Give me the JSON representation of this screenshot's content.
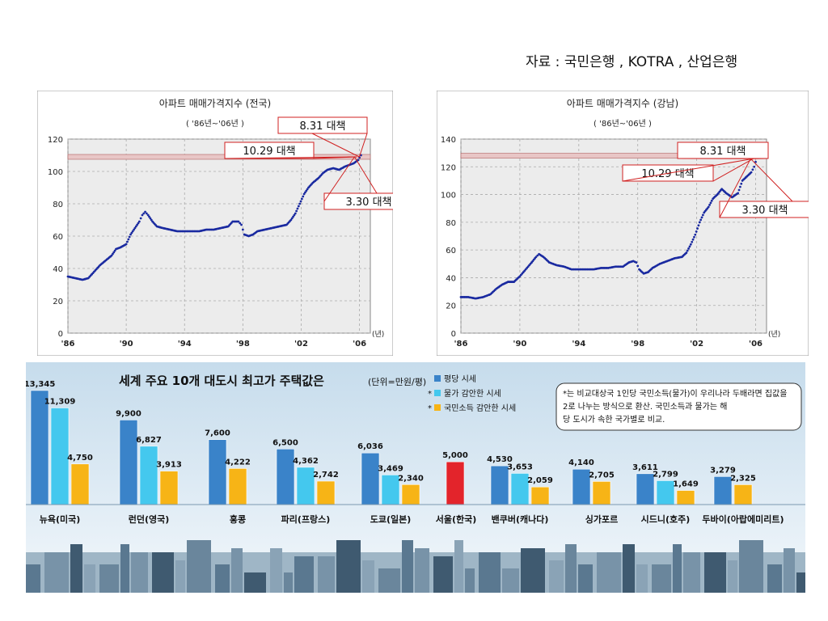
{
  "source": "자료 : 국민은행 , KOTRA , 산업은행",
  "chart_data": [
    {
      "type": "line",
      "title": "아파트 매매가격지수 (전국)",
      "subtitle": "( '86년~'06년 )",
      "x_ticks": [
        "'86",
        "'90",
        "'94",
        "'98",
        "'02",
        "'06"
      ],
      "x_unit": "(년)",
      "ylim": [
        0,
        120
      ],
      "y_ticks": [
        0,
        20,
        40,
        60,
        80,
        100,
        120
      ],
      "reference_line": 109,
      "grid": true,
      "x": [
        1986.0,
        1986.5,
        1987.0,
        1987.4,
        1987.8,
        1988.2,
        1988.6,
        1989.0,
        1989.3,
        1989.6,
        1990.0,
        1990.3,
        1990.6,
        1990.9,
        1991.1,
        1991.3,
        1991.5,
        1991.8,
        1992.1,
        1992.5,
        1993.0,
        1993.5,
        1994.0,
        1994.5,
        1995.0,
        1995.5,
        1996.0,
        1996.5,
        1997.0,
        1997.3,
        1997.7,
        1997.9,
        1998.1,
        1998.4,
        1998.7,
        1999.0,
        1999.5,
        2000.0,
        2000.5,
        2001.0,
        2001.3,
        2001.6,
        2001.9,
        2002.2,
        2002.5,
        2002.8,
        2003.2,
        2003.5,
        2003.8,
        2004.2,
        2004.6,
        2005.0,
        2005.3,
        2005.6,
        2005.9,
        2006.1
      ],
      "y": [
        35,
        34,
        33,
        34,
        38,
        42,
        45,
        48,
        52,
        53,
        55,
        61,
        65,
        69,
        73,
        75,
        73,
        69,
        66,
        65,
        64,
        63,
        63,
        63,
        63,
        64,
        64,
        65,
        66,
        69,
        69,
        67,
        61,
        60,
        61,
        63,
        64,
        65,
        66,
        67,
        70,
        74,
        80,
        86,
        90,
        93,
        96,
        99,
        101,
        102,
        101,
        103,
        104,
        105,
        107,
        110
      ],
      "annotations": [
        "8.31 대책",
        "10.29 대책",
        "3.30 대책"
      ]
    },
    {
      "type": "line",
      "title": "아파트 매매가격지수 (강남)",
      "subtitle": "( '86년~'06년 )",
      "x_ticks": [
        "'86",
        "'90",
        "'94",
        "'98",
        "'02",
        "'06"
      ],
      "x_unit": "(년)",
      "ylim": [
        0,
        140
      ],
      "y_ticks": [
        0,
        20,
        40,
        60,
        80,
        100,
        120,
        140
      ],
      "reference_line": 128,
      "grid": true,
      "x": [
        1986.0,
        1986.5,
        1987.0,
        1987.5,
        1988.0,
        1988.4,
        1988.8,
        1989.2,
        1989.6,
        1990.0,
        1990.4,
        1990.8,
        1991.1,
        1991.3,
        1991.6,
        1992.0,
        1992.5,
        1993.0,
        1993.5,
        1994.0,
        1994.5,
        1995.0,
        1995.5,
        1996.0,
        1996.5,
        1997.0,
        1997.4,
        1997.7,
        1997.9,
        1998.1,
        1998.4,
        1998.7,
        1999.0,
        1999.5,
        2000.0,
        2000.5,
        2001.0,
        2001.3,
        2001.6,
        2001.9,
        2002.2,
        2002.5,
        2002.8,
        2003.1,
        2003.4,
        2003.7,
        2004.0,
        2004.4,
        2004.8,
        2005.1,
        2005.4,
        2005.7,
        2005.9,
        2006.1
      ],
      "y": [
        26,
        26,
        25,
        26,
        28,
        32,
        35,
        37,
        37,
        41,
        46,
        51,
        55,
        57,
        55,
        51,
        49,
        48,
        46,
        46,
        46,
        46,
        47,
        47,
        48,
        48,
        51,
        52,
        51,
        46,
        43,
        44,
        47,
        50,
        52,
        54,
        55,
        58,
        64,
        71,
        80,
        87,
        91,
        97,
        100,
        104,
        101,
        98,
        101,
        110,
        113,
        116,
        120,
        127
      ],
      "annotations": [
        "8.31 대책",
        "10.29 대책",
        "3.30 대책"
      ]
    },
    {
      "type": "bar",
      "title": "세계 주요 10개 대도시 최고가 주택값은",
      "unit": "(단위=만원/평)",
      "legend_position": "top-center",
      "note": "*는 비교대상국 1인당 국민소득(물가)이 우리나라 두배라면 집값을 2로 나누는 방식으로 환산. 국민소득과 물가는 해당 도시가 속한 국가별로 비교.",
      "categories": [
        "뉴욕(미국)",
        "런던(영국)",
        "홍콩",
        "파리(프랑스)",
        "도쿄(일본)",
        "서울(한국)",
        "밴쿠버(캐나다)",
        "싱가포르",
        "시드니(호주)",
        "두바이(아랍에미리트)"
      ],
      "series": [
        {
          "name": "평당 시세",
          "color": "#3a83c9",
          "values": [
            13345,
            9900,
            7600,
            6500,
            6036,
            null,
            4530,
            4140,
            3611,
            3279
          ]
        },
        {
          "name": "물가 감안한 시세",
          "color": "#44c8ee",
          "values": [
            11309,
            6827,
            null,
            4362,
            3469,
            null,
            3653,
            null,
            2799,
            null
          ]
        },
        {
          "name": "국민소득 감안한 시세",
          "color": "#f7b416",
          "values": [
            4750,
            3913,
            4222,
            2742,
            2340,
            null,
            2059,
            2705,
            1649,
            2325
          ]
        },
        {
          "name": "서울",
          "color": "#e3242b",
          "values": [
            null,
            null,
            null,
            null,
            null,
            5000,
            null,
            null,
            null,
            null
          ]
        }
      ],
      "value_labels": [
        [
          "13,345",
          "11,309",
          "4,750"
        ],
        [
          "9,900",
          "6,827",
          "3,913"
        ],
        [
          "7,600",
          null,
          "4,222"
        ],
        [
          "6,500",
          "4,362",
          "2,742"
        ],
        [
          "6,036",
          "3,469",
          "2,340"
        ],
        [
          null,
          null,
          null,
          "5,000"
        ],
        [
          "4,530",
          "3,653",
          "2,059"
        ],
        [
          "4,140",
          null,
          "2,705"
        ],
        [
          "3,611",
          "2,799",
          "1,649"
        ],
        [
          "3,279",
          null,
          "2,325"
        ]
      ],
      "legend_entries": [
        "평당 시세",
        "물가 감안한 시세",
        "국민소득 감안한 시세"
      ],
      "legend_markers": [
        "",
        "*",
        "*"
      ]
    }
  ]
}
